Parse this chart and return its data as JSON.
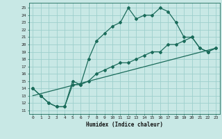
{
  "xlabel": "Humidex (Indice chaleur)",
  "background_color": "#c8e8e5",
  "grid_color": "#9ecfcc",
  "line_color": "#1a6b5a",
  "xlim": [
    -0.5,
    23.5
  ],
  "ylim": [
    10.5,
    25.7
  ],
  "yticks": [
    11,
    12,
    13,
    14,
    15,
    16,
    17,
    18,
    19,
    20,
    21,
    22,
    23,
    24,
    25
  ],
  "xticks": [
    0,
    1,
    2,
    3,
    4,
    5,
    6,
    7,
    8,
    9,
    10,
    11,
    12,
    13,
    14,
    15,
    16,
    17,
    18,
    19,
    20,
    21,
    22,
    23
  ],
  "line1_x": [
    0,
    1,
    2,
    3,
    4,
    5,
    6,
    7,
    8,
    9,
    10,
    11,
    12,
    13,
    14,
    15,
    16,
    17,
    18,
    19,
    20,
    21,
    22,
    23
  ],
  "line1_y": [
    14,
    13,
    12,
    11.5,
    11.5,
    15,
    14.5,
    18,
    20.5,
    21.5,
    22.5,
    23,
    25,
    23.5,
    24,
    24,
    25,
    24.5,
    23,
    21,
    21,
    19.5,
    19,
    19.5
  ],
  "line2_x": [
    0,
    1,
    2,
    3,
    4,
    5,
    6,
    7,
    8,
    9,
    10,
    11,
    12,
    13,
    14,
    15,
    16,
    17,
    18,
    19,
    20,
    21,
    22,
    23
  ],
  "line2_y": [
    14,
    13,
    12,
    11.5,
    11.5,
    14.5,
    14.5,
    15,
    16,
    16.5,
    17,
    17.5,
    17.5,
    18,
    18.5,
    19,
    19,
    20,
    20,
    20.5,
    21,
    19.5,
    19,
    19.5
  ],
  "line3_x": [
    0,
    23
  ],
  "line3_y": [
    13,
    19.5
  ]
}
